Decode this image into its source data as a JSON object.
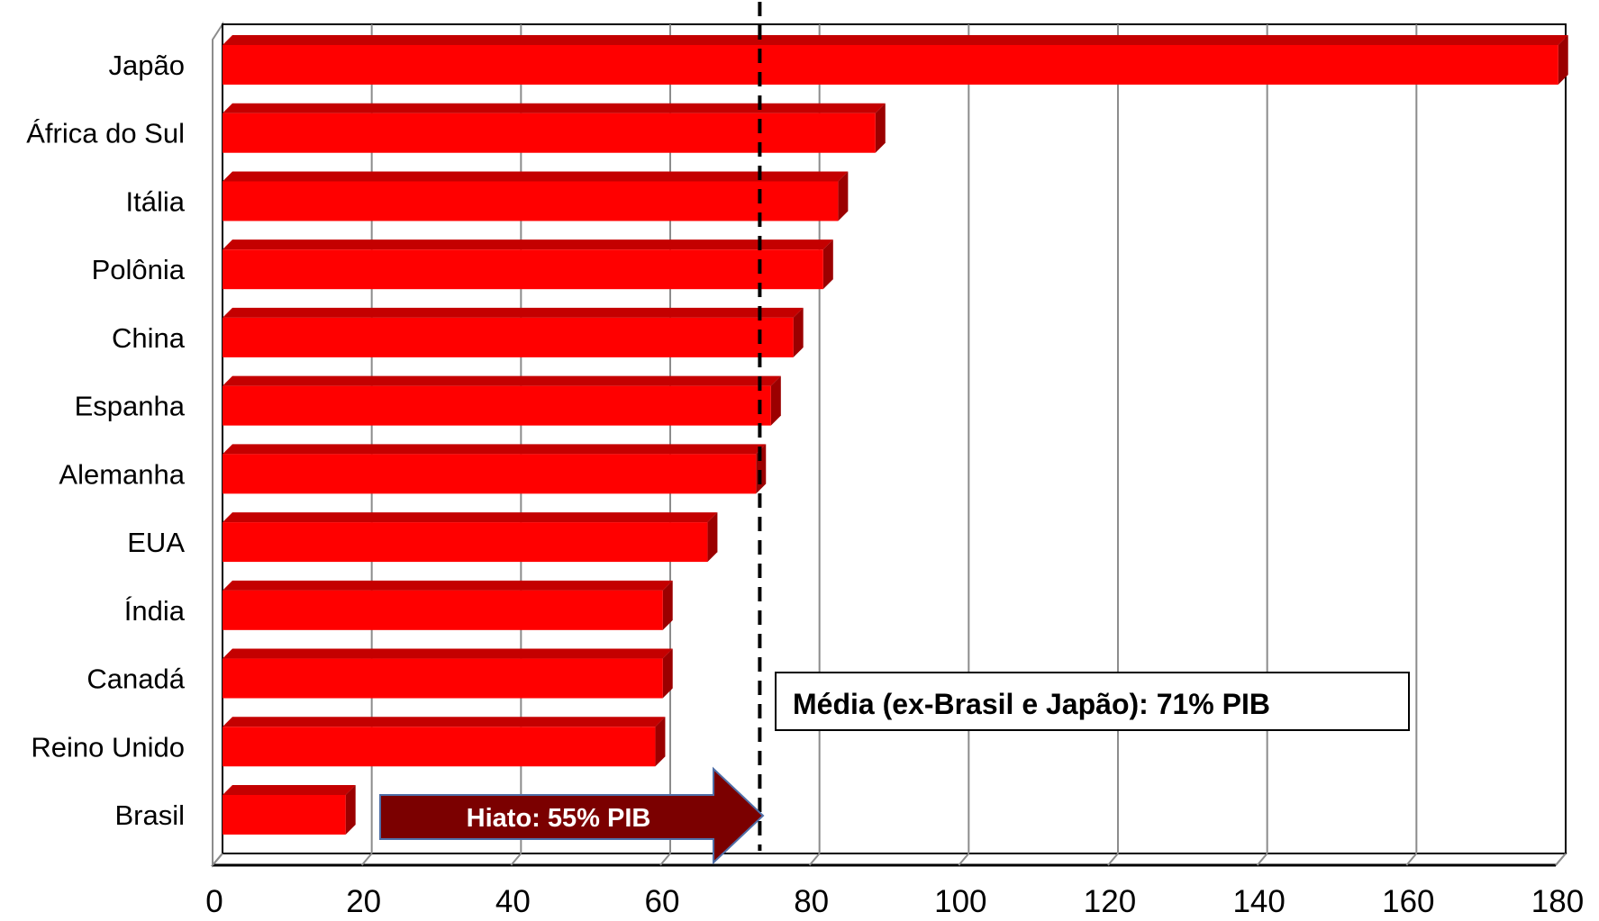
{
  "chart_data": {
    "type": "bar",
    "orientation": "horizontal",
    "style": "3d",
    "categories": [
      "Japão",
      "África do Sul",
      "Itália",
      "Polônia",
      "China",
      "Espanha",
      "Alemanha",
      "EUA",
      "Índia",
      "Canadá",
      "Reino Unido",
      "Brasil"
    ],
    "values": [
      179,
      87.5,
      82.5,
      80.5,
      76.5,
      73.5,
      71.5,
      65,
      59,
      59,
      58,
      16.5
    ],
    "xlim": [
      0,
      180
    ],
    "xticks": [
      0,
      20,
      40,
      60,
      80,
      100,
      120,
      140,
      160,
      180
    ],
    "grid": true,
    "bar_color": "#ff0000",
    "reference_line": {
      "value": 72,
      "style": "dashed",
      "color": "#000000"
    },
    "annotations": {
      "average": "Média (ex-Brasil e Japão): 71% PIB",
      "gap": "Hiato: 55% PIB"
    },
    "gap_arrow_color": "#7b0000"
  }
}
